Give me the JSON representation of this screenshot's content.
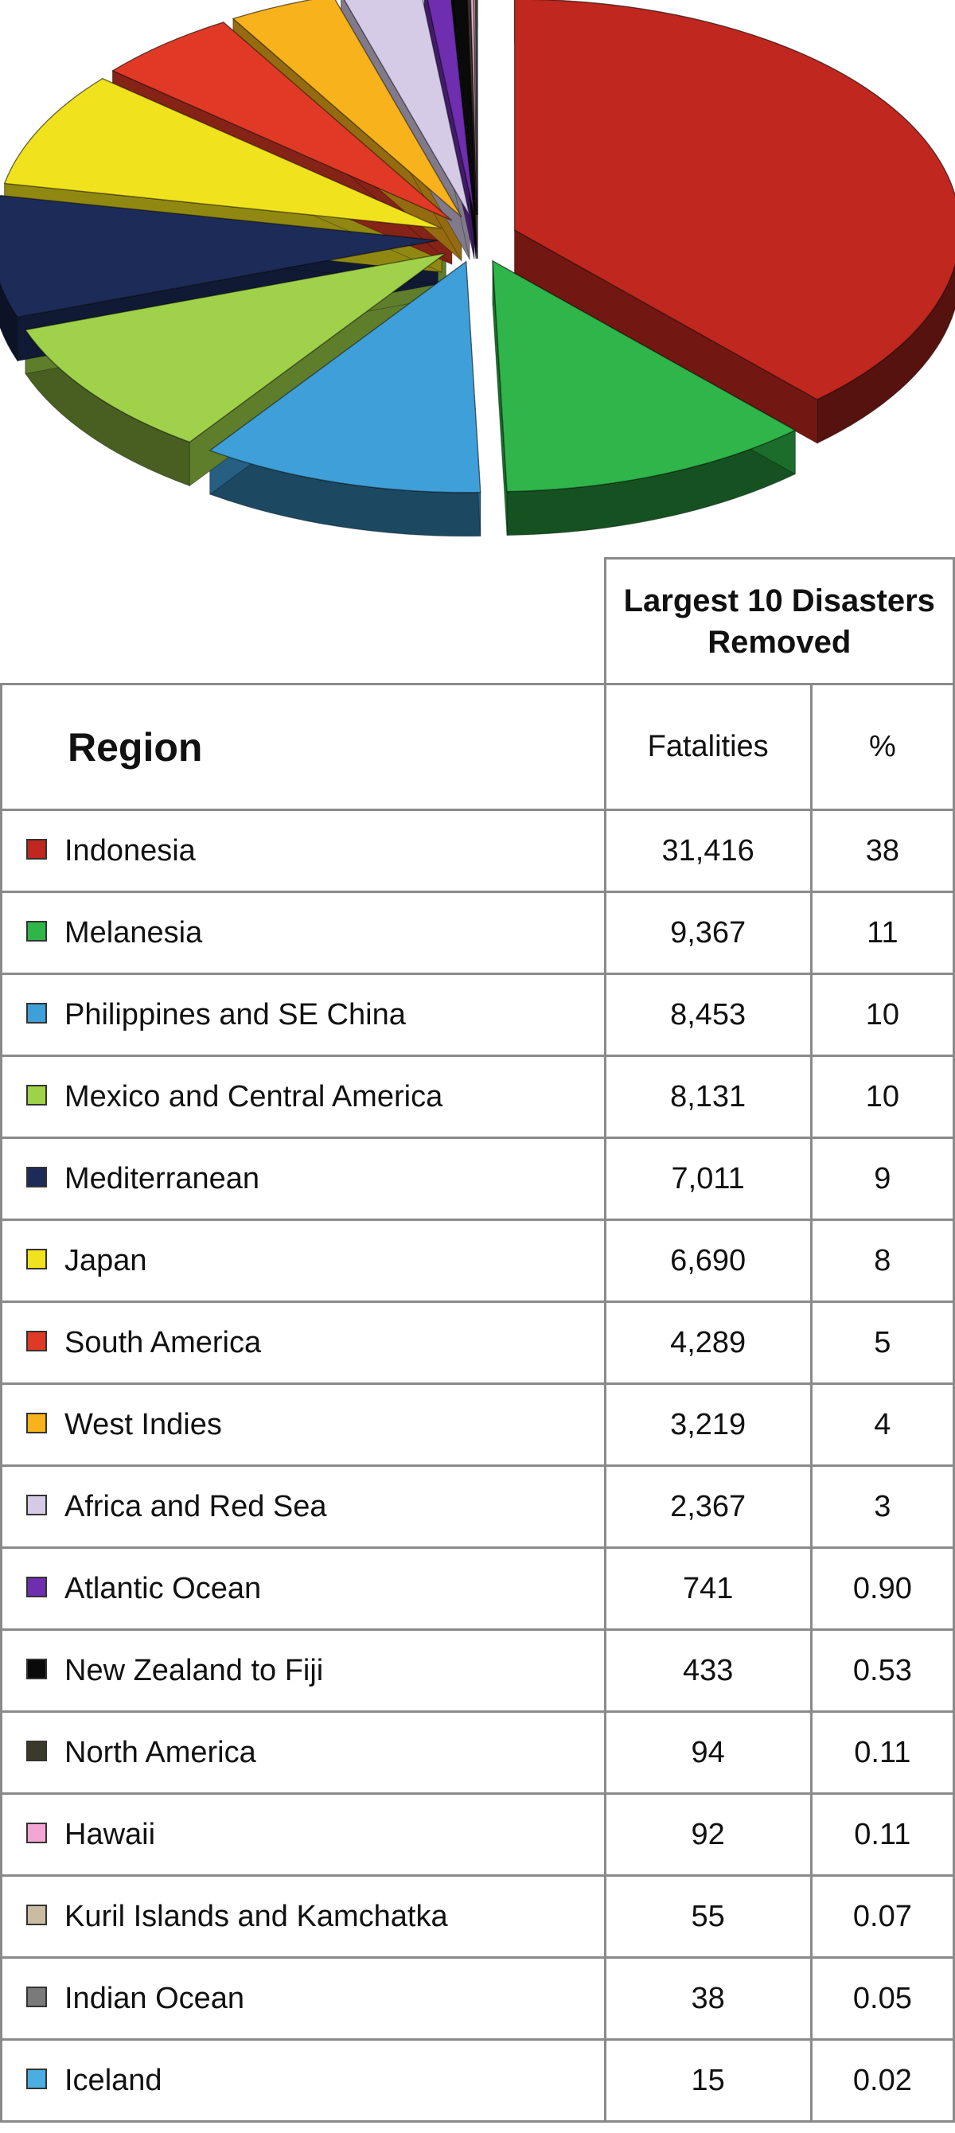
{
  "chart_data": {
    "type": "pie",
    "title": "",
    "table": {
      "group_header": "Largest 10 Disasters Removed",
      "columns": [
        "Region",
        "Fatalities",
        "%"
      ]
    },
    "categories": [
      "Indonesia",
      "Melanesia",
      "Philippines and SE China",
      "Mexico and Central America",
      "Mediterranean",
      "Japan",
      "South America",
      "West Indies",
      "Africa and Red Sea",
      "Atlantic Ocean",
      "New Zealand to Fiji",
      "North America",
      "Hawaii",
      "Kuril Islands and Kamchatka",
      "Indian Ocean",
      "Iceland"
    ],
    "fatalities": [
      31416,
      9367,
      8453,
      8131,
      7011,
      6690,
      4289,
      3219,
      2367,
      741,
      433,
      94,
      92,
      55,
      38,
      15
    ],
    "rows": [
      {
        "region": "Indonesia",
        "fatalities": "31,416",
        "percent": "38",
        "color": "#c0271e"
      },
      {
        "region": "Melanesia",
        "fatalities": "9,367",
        "percent": "11",
        "color": "#2fb54a"
      },
      {
        "region": "Philippines and SE China",
        "fatalities": "8,453",
        "percent": "10",
        "color": "#3f9fd8"
      },
      {
        "region": "Mexico and Central America",
        "fatalities": "8,131",
        "percent": "10",
        "color": "#9fd24a"
      },
      {
        "region": "Mediterranean",
        "fatalities": "7,011",
        "percent": "9",
        "color": "#1c2b57"
      },
      {
        "region": "Japan",
        "fatalities": "6,690",
        "percent": "8",
        "color": "#f1e21e"
      },
      {
        "region": "South America",
        "fatalities": "4,289",
        "percent": "5",
        "color": "#e03a26"
      },
      {
        "region": "West Indies",
        "fatalities": "3,219",
        "percent": "4",
        "color": "#f8b21c"
      },
      {
        "region": "Africa and Red Sea",
        "fatalities": "2,367",
        "percent": "3",
        "color": "#d6cbe6"
      },
      {
        "region": "Atlantic Ocean",
        "fatalities": "741",
        "percent": "0.90",
        "color": "#6f2db0"
      },
      {
        "region": "New Zealand to Fiji",
        "fatalities": "433",
        "percent": "0.53",
        "color": "#0a0a0a"
      },
      {
        "region": "North America",
        "fatalities": "94",
        "percent": "0.11",
        "color": "#3b3a2a"
      },
      {
        "region": "Hawaii",
        "fatalities": "92",
        "percent": "0.11",
        "color": "#f1a6d4"
      },
      {
        "region": "Kuril Islands and Kamchatka",
        "fatalities": "55",
        "percent": "0.07",
        "color": "#c9bca1"
      },
      {
        "region": "Indian Ocean",
        "fatalities": "38",
        "percent": "0.05",
        "color": "#7a7a7a"
      },
      {
        "region": "Iceland",
        "fatalities": "15",
        "percent": "0.02",
        "color": "#4aaee0"
      }
    ]
  }
}
